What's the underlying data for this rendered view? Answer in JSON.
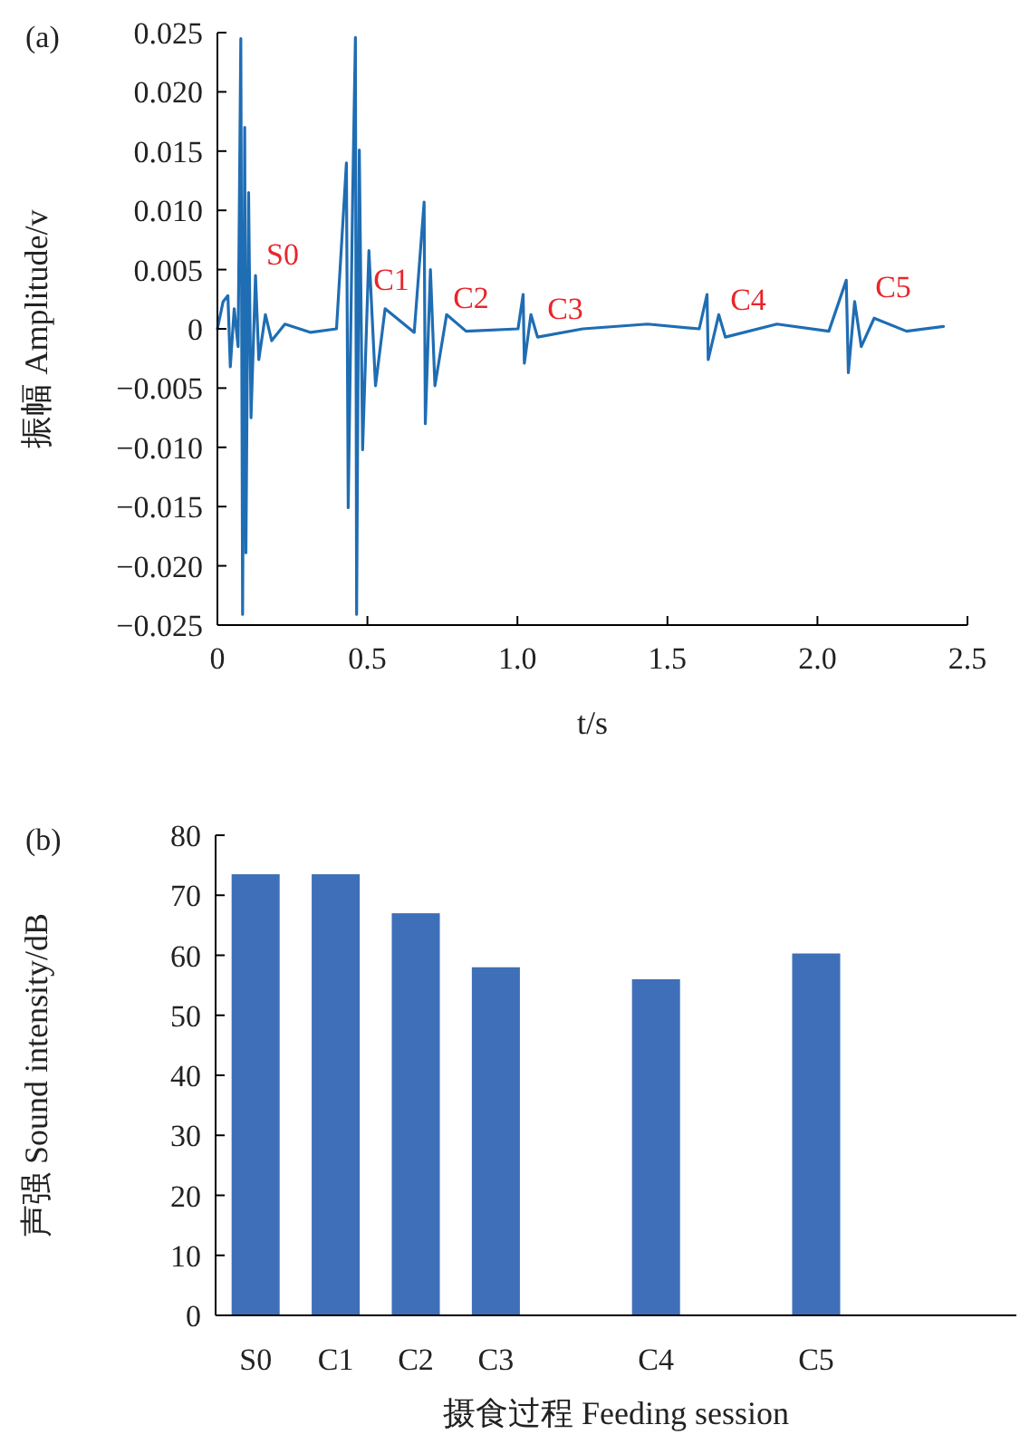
{
  "chart_data": [
    {
      "type": "line",
      "title": "(a)",
      "xlabel": "t/s",
      "ylabel": "振幅 Amplitude/v",
      "color": "#1f6db3",
      "x": [
        0,
        0.019,
        0.035,
        0.043,
        0.056,
        0.069,
        0.078,
        0.084,
        0.091,
        0.095,
        0.104,
        0.112,
        0.127,
        0.138,
        0.16,
        0.181,
        0.225,
        0.311,
        0.397,
        0.43,
        0.436,
        0.451,
        0.46,
        0.464,
        0.473,
        0.484,
        0.505,
        0.527,
        0.559,
        0.656,
        0.689,
        0.693,
        0.71,
        0.725,
        0.764,
        0.829,
        1.002,
        1.019,
        1.023,
        1.045,
        1.067,
        1.218,
        1.434,
        1.606,
        1.632,
        1.636,
        1.671,
        1.693,
        1.865,
        2.038,
        2.096,
        2.103,
        2.124,
        2.146,
        2.189,
        2.297,
        2.42
      ],
      "values": [
        0,
        0.0023,
        0.0028,
        -0.0032,
        0.0017,
        -0.0015,
        0.0245,
        -0.0241,
        0.017,
        -0.0189,
        0.0115,
        -0.0075,
        0.0045,
        -0.0026,
        0.0012,
        -0.001,
        0.0004,
        -0.0003,
        0,
        0.014,
        -0.0151,
        0.0115,
        0.0246,
        -0.0241,
        0.0151,
        -0.0102,
        0.0066,
        -0.0048,
        0.0017,
        -0.0003,
        0.0107,
        -0.008,
        0.005,
        -0.0048,
        0.0012,
        -0.0002,
        0,
        0.0029,
        -0.0029,
        0.0012,
        -0.0007,
        0,
        0.0004,
        0,
        0.0029,
        -0.0026,
        0.0012,
        -0.0007,
        0.0004,
        -0.0002,
        0.0041,
        -0.0037,
        0.0023,
        -0.0015,
        0.0009,
        -0.0002,
        0.0002
      ],
      "xlim": [
        0,
        2.5
      ],
      "ylim": [
        -0.025,
        0.025
      ],
      "xticks": [
        0,
        {
          "value": 0.5,
          "label": "0.5"
        },
        {
          "value": 1,
          "label": "1.0"
        },
        {
          "value": 1.5,
          "label": "1.5"
        },
        {
          "value": 2,
          "label": "2.0"
        },
        {
          "value": 2.5,
          "label": "2.5"
        }
      ],
      "yticks": [
        {
          "value": -0.025,
          "label": "−0.025"
        },
        {
          "value": -0.02,
          "label": "−0.020"
        },
        {
          "value": -0.015,
          "label": "−0.015"
        },
        {
          "value": -0.01,
          "label": "−0.010"
        },
        {
          "value": -0.005,
          "label": "−0.005"
        },
        0,
        {
          "value": 0.005,
          "label": "0.005"
        },
        {
          "value": 0.01,
          "label": "0.010"
        },
        {
          "value": 0.015,
          "label": "0.015"
        },
        {
          "value": 0.02,
          "label": "0.020"
        },
        {
          "value": 0.025,
          "label": "0.025"
        }
      ],
      "annotations": [
        "S0",
        "C1",
        "C2",
        "C3",
        "C4",
        "C5"
      ]
    },
    {
      "type": "bar",
      "title": "(b)",
      "xlabel": "摄食过程 Feeding session",
      "ylabel": "声强 Sound intensity/dB",
      "color": "#3f6fb8",
      "categories": [
        "S0",
        "C1",
        "C2",
        "C3",
        null,
        "C4",
        null,
        "C5",
        null,
        null
      ],
      "values": [
        73.5,
        73.5,
        67,
        58,
        null,
        56,
        null,
        60.3,
        null,
        null
      ],
      "ylim": [
        0,
        80
      ],
      "yticks": [
        0,
        10,
        20,
        30,
        40,
        50,
        60,
        70,
        80
      ]
    }
  ]
}
